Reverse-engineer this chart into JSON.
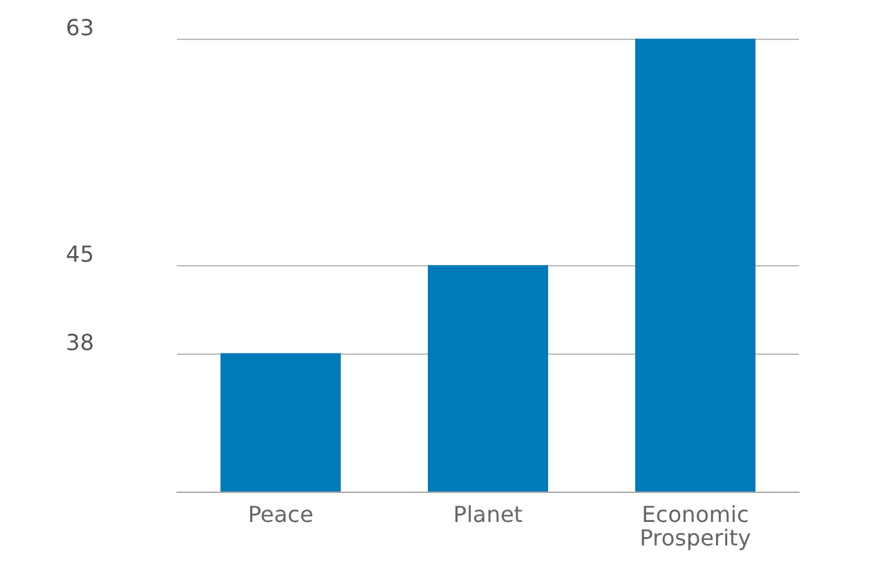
{
  "chart_data": {
    "type": "bar",
    "categories": [
      "Peace",
      "Planet",
      "Economic Prosperity"
    ],
    "values": [
      38,
      45,
      63
    ],
    "color": "#007bba",
    "ylim": [
      27,
      63
    ],
    "yticks": [
      38,
      45,
      63
    ],
    "grid": "y"
  }
}
